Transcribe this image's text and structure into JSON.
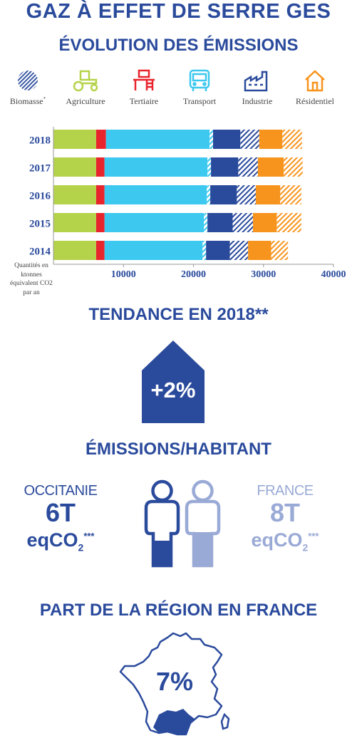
{
  "title": "GAZ À EFFET DE SERRE GES",
  "subtitle": "ÉVOLUTION DES ÉMISSIONS",
  "legend": [
    {
      "label": "Biomasse",
      "sup": "*",
      "icon": "hatched-circle-icon",
      "color": "#2a4a9c"
    },
    {
      "label": "Agriculture",
      "sup": "",
      "icon": "tractor-icon",
      "color": "#b5d34a"
    },
    {
      "label": "Tertiaire",
      "sup": "",
      "icon": "desk-icon",
      "color": "#e8242c"
    },
    {
      "label": "Transport",
      "sup": "",
      "icon": "bus-icon",
      "color": "#3cc8ef"
    },
    {
      "label": "Industrie",
      "sup": "",
      "icon": "factory-icon",
      "color": "#2a4a9c"
    },
    {
      "label": "Résidentiel",
      "sup": "",
      "icon": "house-icon",
      "color": "#f7941d"
    }
  ],
  "chart_data": {
    "type": "bar",
    "orientation": "horizontal",
    "stacked": true,
    "categories": [
      "2018",
      "2017",
      "2016",
      "2015",
      "2014"
    ],
    "series": [
      {
        "name": "Agriculture",
        "color": "#b5d34a",
        "hatched": false,
        "values": [
          6100,
          6100,
          6100,
          6100,
          6100
        ]
      },
      {
        "name": "Tertiaire",
        "color": "#e8242c",
        "hatched": false,
        "values": [
          1400,
          1200,
          1200,
          1200,
          1200
        ]
      },
      {
        "name": "Transport",
        "color": "#3cc8ef",
        "hatched": false,
        "values": [
          14800,
          14700,
          14600,
          14200,
          14000
        ]
      },
      {
        "name": "Transport",
        "color": "#3cc8ef",
        "hatched": true,
        "values": [
          500,
          500,
          500,
          500,
          500
        ]
      },
      {
        "name": "Industrie",
        "color": "#2a4a9c",
        "hatched": false,
        "values": [
          3900,
          3900,
          3800,
          3600,
          3400
        ]
      },
      {
        "name": "Industrie",
        "color": "#2a4a9c",
        "hatched": true,
        "values": [
          2700,
          2800,
          2700,
          2900,
          2600
        ]
      },
      {
        "name": "Résidentiel",
        "color": "#f7941d",
        "hatched": false,
        "values": [
          3300,
          3700,
          3500,
          3400,
          3300
        ]
      },
      {
        "name": "Résidentiel",
        "color": "#f7941d",
        "hatched": true,
        "values": [
          2800,
          2700,
          3000,
          3500,
          2400
        ]
      }
    ],
    "x_ticks": [
      "10000",
      "20000",
      "30000",
      "40000"
    ],
    "xlim": [
      0,
      40000
    ],
    "ylabel": "Quantités en ktonnes équivalent CO2 par an",
    "grid": false
  },
  "trend": {
    "title": "TENDANCE EN 2018**",
    "value": "+2%"
  },
  "per_inhabitant": {
    "title": "ÉMISSIONS/HABITANT",
    "left": {
      "region": "OCCITANIE",
      "value": "6T",
      "unit": "eqCO",
      "sub": "2",
      "sup": "***",
      "color": "#2a4a9c"
    },
    "right": {
      "region": "FRANCE",
      "value": "8T",
      "unit": "eqCO",
      "sub": "2",
      "sup": "***",
      "color": "#9aaad6"
    }
  },
  "share": {
    "title": "PART DE LA RÉGION EN FRANCE",
    "value": "7%"
  }
}
